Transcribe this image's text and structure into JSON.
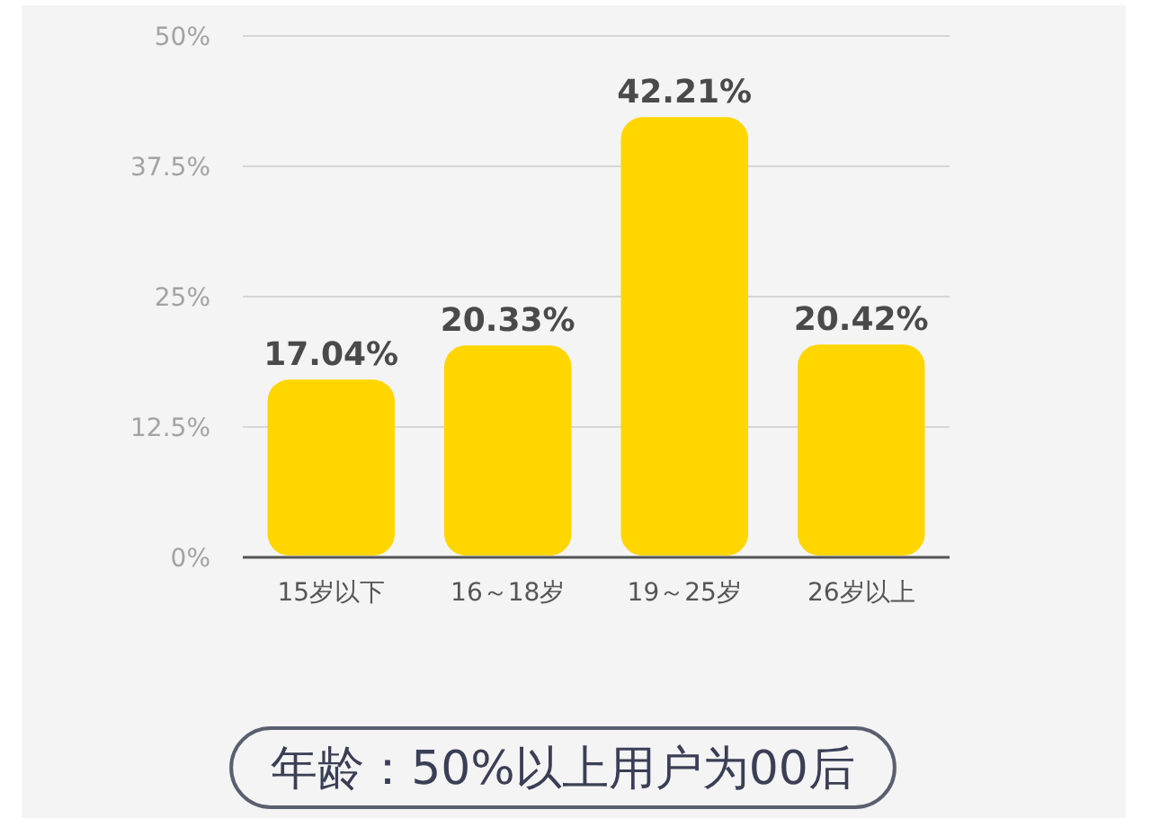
{
  "chart_data": {
    "type": "bar",
    "categories": [
      "15岁以下",
      "16～18岁",
      "19～25岁",
      "26岁以上"
    ],
    "values": [
      17.04,
      20.33,
      42.21,
      20.42
    ],
    "value_labels": [
      "17.04%",
      "20.33%",
      "42.21%",
      "20.42%"
    ],
    "color": "#ffd600",
    "ylim": [
      0,
      50
    ],
    "yticks": [
      {
        "value": 0,
        "label": "0%"
      },
      {
        "value": 12.5,
        "label": "12.5%"
      },
      {
        "value": 25,
        "label": "25%"
      },
      {
        "value": 37.5,
        "label": "37.5%"
      },
      {
        "value": 50,
        "label": "50%"
      }
    ],
    "grid": "y",
    "annotations": [
      "年龄：50%以上用户为00后"
    ]
  }
}
